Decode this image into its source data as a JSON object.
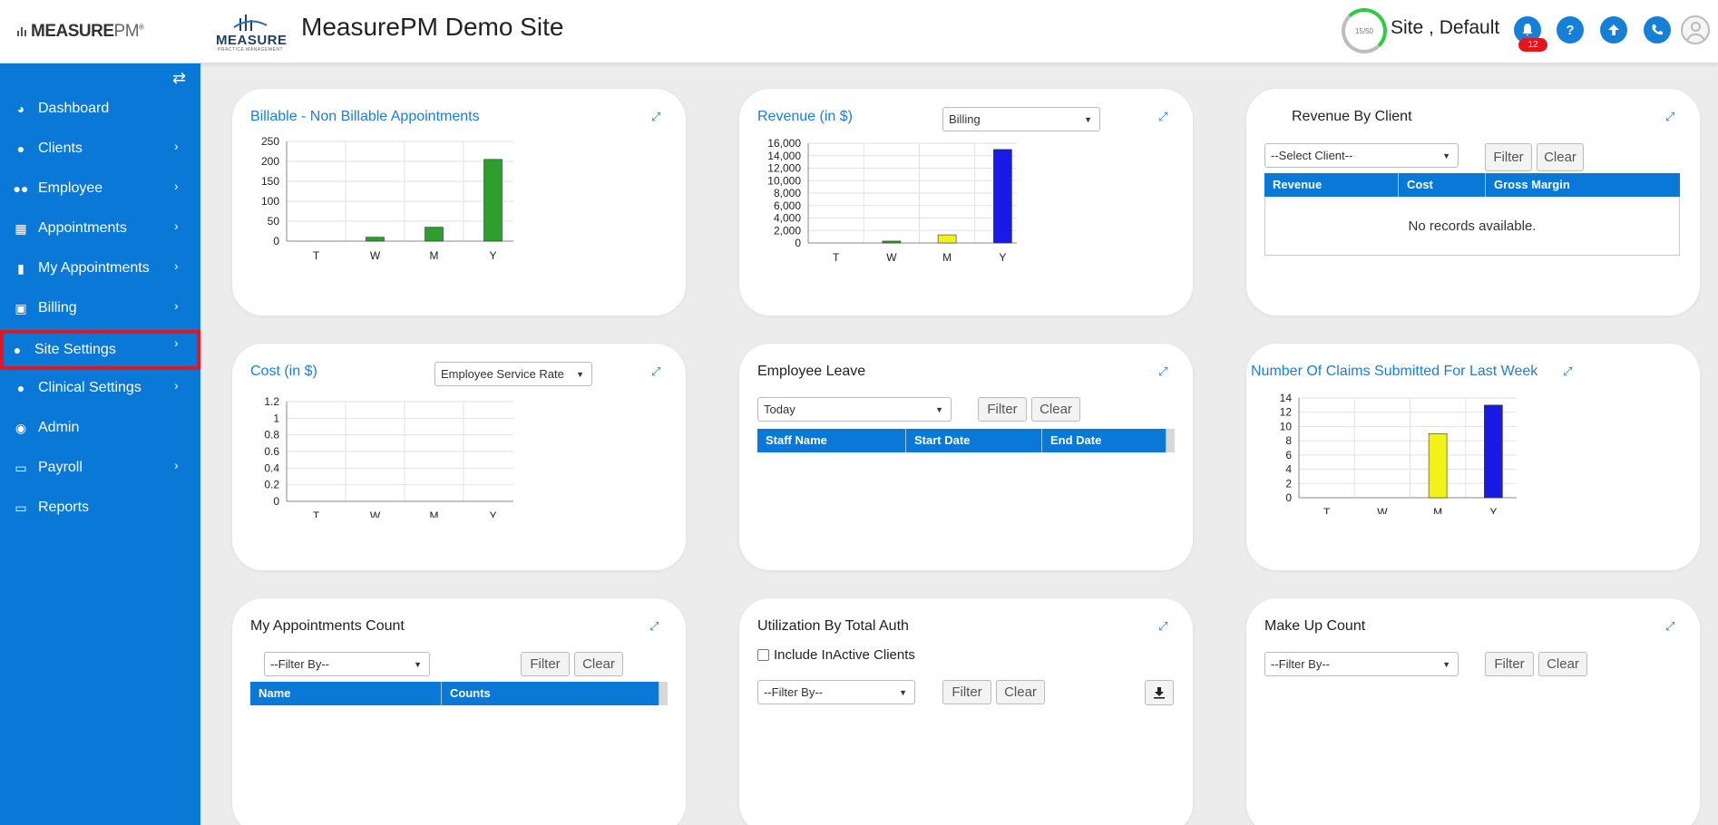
{
  "header": {
    "brand": "MEASURE",
    "brand_suffix": "PM",
    "brand_tm": "®",
    "site_logo_word": "MEASURE",
    "site_logo_sub": "PRACTICE MANAGEMENT",
    "title": "MeasurePM Demo Site",
    "gauge_text": "15/50",
    "user": "Site , Default",
    "notification_count": "12"
  },
  "sidebar": {
    "items": [
      {
        "label": "Dashboard",
        "icon": "dashboard-icon",
        "chevron": false
      },
      {
        "label": "Clients",
        "icon": "user-icon",
        "chevron": true
      },
      {
        "label": "Employee",
        "icon": "users-icon",
        "chevron": true
      },
      {
        "label": "Appointments",
        "icon": "calendar-icon",
        "chevron": true
      },
      {
        "label": "My Appointments",
        "icon": "book-icon",
        "chevron": true
      },
      {
        "label": "Billing",
        "icon": "money-icon",
        "chevron": true
      },
      {
        "label": "Site Settings",
        "icon": "user-icon",
        "chevron": true
      },
      {
        "label": "Clinical Settings",
        "icon": "user-icon",
        "chevron": true
      },
      {
        "label": "Admin",
        "icon": "user-circle-icon",
        "chevron": false
      },
      {
        "label": "Payroll",
        "icon": "credit-card-icon",
        "chevron": true
      },
      {
        "label": "Reports",
        "icon": "credit-card-icon",
        "chevron": false
      }
    ]
  },
  "widgets": {
    "billable": {
      "title": "Billable - Non Billable Appointments"
    },
    "revenue": {
      "title": "Revenue (in $)",
      "select": "Billing"
    },
    "revenue_client": {
      "title": "Revenue By Client",
      "select": "--Select Client--",
      "filter": "Filter",
      "clear": "Clear",
      "columns": [
        "Revenue",
        "Cost",
        "Gross Margin"
      ],
      "empty": "No records available."
    },
    "cost": {
      "title": "Cost (in $)",
      "select": "Employee Service Rate"
    },
    "leave": {
      "title": "Employee Leave",
      "select": "Today",
      "filter": "Filter",
      "clear": "Clear",
      "columns": [
        "Staff Name",
        "Start Date",
        "End Date"
      ]
    },
    "claims": {
      "title": "Number Of Claims Submitted For Last Week"
    },
    "my_appointments": {
      "title": "My Appointments Count",
      "select": "--Filter By--",
      "filter": "Filter",
      "clear": "Clear",
      "columns": [
        "Name",
        "Counts"
      ]
    },
    "utilization": {
      "title": "Utilization By Total Auth",
      "checkbox_label": "Include InActive Clients",
      "select": "--Filter By--",
      "filter": "Filter",
      "clear": "Clear"
    },
    "makeup": {
      "title": "Make Up Count",
      "select": "--Filter By--",
      "filter": "Filter",
      "clear": "Clear"
    }
  },
  "chart_data": [
    {
      "id": "billable",
      "type": "bar",
      "categories": [
        "T",
        "W",
        "M",
        "Y"
      ],
      "values": [
        0,
        10,
        35,
        205
      ],
      "colors": [
        "#2e9e2e",
        "#2e9e2e",
        "#2e9e2e",
        "#2e9e2e"
      ],
      "yticks": [
        "0",
        "50",
        "100",
        "150",
        "200",
        "250"
      ],
      "ylim": [
        0,
        250
      ]
    },
    {
      "id": "revenue",
      "type": "bar",
      "categories": [
        "T",
        "W",
        "M",
        "Y"
      ],
      "values": [
        0,
        300,
        1300,
        15000
      ],
      "colors": [
        "#2e9e2e",
        "#2e9e2e",
        "#f2f21a",
        "#1a1ae6"
      ],
      "yticks": [
        "0",
        "2,000",
        "4,000",
        "6,000",
        "8,000",
        "10,000",
        "12,000",
        "14,000",
        "16,000"
      ],
      "ylim": [
        0,
        16000
      ]
    },
    {
      "id": "cost",
      "type": "bar",
      "categories": [
        "T",
        "W",
        "M",
        "Y"
      ],
      "values": [
        0,
        0,
        0,
        0
      ],
      "colors": [
        "#2e9e2e",
        "#2e9e2e",
        "#2e9e2e",
        "#2e9e2e"
      ],
      "yticks": [
        "0",
        "0.2",
        "0.4",
        "0.6",
        "0.8",
        "1",
        "1.2"
      ],
      "ylim": [
        0,
        1.2
      ]
    },
    {
      "id": "claims",
      "type": "bar",
      "categories": [
        "T",
        "W",
        "M",
        "Y"
      ],
      "values": [
        0,
        0,
        9,
        13
      ],
      "colors": [
        "#2e9e2e",
        "#2e9e2e",
        "#f2f21a",
        "#1a1ae6"
      ],
      "yticks": [
        "0",
        "2",
        "4",
        "6",
        "8",
        "10",
        "12",
        "14"
      ],
      "ylim": [
        0,
        14
      ]
    }
  ]
}
